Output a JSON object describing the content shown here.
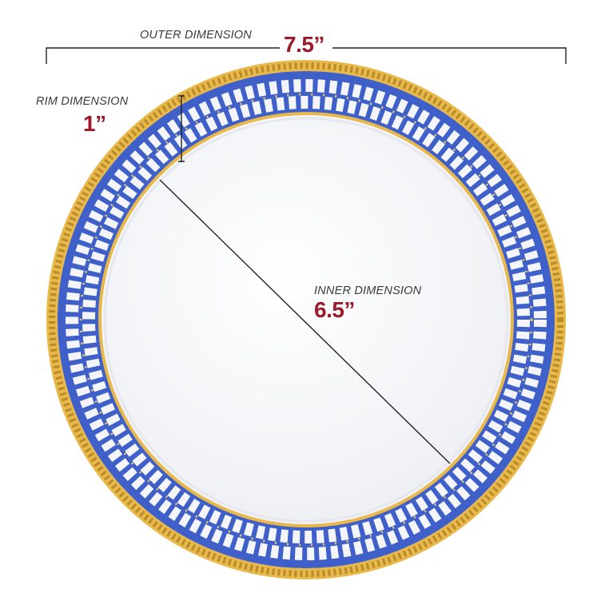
{
  "outer": {
    "label": "OUTER DIMENSION",
    "value": "7.5”"
  },
  "rim": {
    "label": "RIM DIMENSION",
    "value": "1”"
  },
  "inner": {
    "label": "INNER DIMENSION",
    "value": "6.5”"
  },
  "colors": {
    "accent_red": "#9b1b2a",
    "rim_blue": "#3f5fc9",
    "trim_gold": "#e8b94a",
    "line": "#222222"
  }
}
